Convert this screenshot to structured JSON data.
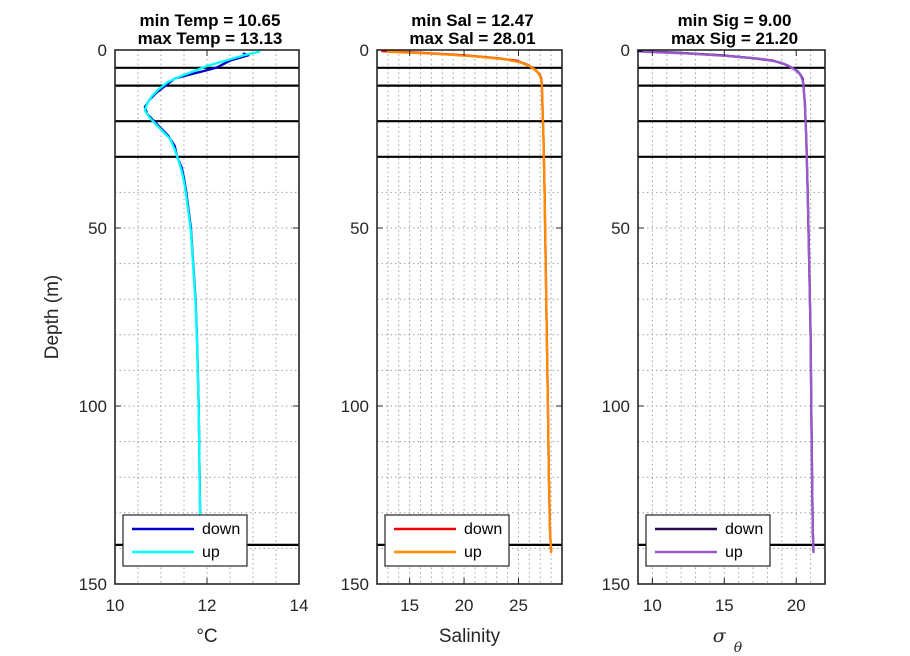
{
  "chart_data": [
    {
      "type": "line",
      "panel": "temperature",
      "title_lines": [
        "min Temp = 10.65",
        "max Temp = 13.13"
      ],
      "xlabel": "°C",
      "ylabel": "Depth (m)",
      "xlim": [
        10,
        14
      ],
      "ylim": [
        0,
        150
      ],
      "y_reversed": true,
      "xticks": [
        10,
        12,
        14
      ],
      "yticks": [
        0,
        50,
        100,
        150
      ],
      "minor_x_step": 0.5,
      "minor_y_step": 10,
      "grid": "dotted-minor",
      "reference_depths": [
        5,
        10,
        20,
        30,
        139
      ],
      "legend_position": "bottom",
      "series": [
        {
          "name": "down",
          "color": "#0000cd",
          "points": [
            [
              12.8,
              1
            ],
            [
              12.9,
              1.5
            ],
            [
              12.5,
              3
            ],
            [
              12.2,
              5
            ],
            [
              11.9,
              6
            ],
            [
              11.6,
              7
            ],
            [
              11.3,
              8
            ],
            [
              11.1,
              10
            ],
            [
              10.9,
              12
            ],
            [
              10.75,
              14
            ],
            [
              10.65,
              16
            ],
            [
              10.7,
              18
            ],
            [
              10.85,
              20
            ],
            [
              11.0,
              22
            ],
            [
              11.15,
              24
            ],
            [
              11.3,
              27
            ],
            [
              11.35,
              30
            ],
            [
              11.45,
              33
            ],
            [
              11.5,
              36
            ],
            [
              11.55,
              40
            ],
            [
              11.6,
              45
            ],
            [
              11.65,
              50
            ],
            [
              11.7,
              60
            ],
            [
              11.75,
              70
            ],
            [
              11.78,
              80
            ],
            [
              11.8,
              90
            ],
            [
              11.82,
              100
            ],
            [
              11.83,
              110
            ],
            [
              11.84,
              120
            ],
            [
              11.85,
              130
            ]
          ]
        },
        {
          "name": "up",
          "color": "#00ffff",
          "points": [
            [
              13.13,
              0.5
            ],
            [
              12.8,
              1.5
            ],
            [
              12.4,
              3
            ],
            [
              12.0,
              4.5
            ],
            [
              11.7,
              6
            ],
            [
              11.4,
              7.5
            ],
            [
              11.15,
              9
            ],
            [
              10.95,
              11
            ],
            [
              10.8,
              13
            ],
            [
              10.7,
              15
            ],
            [
              10.65,
              17
            ],
            [
              10.75,
              19
            ],
            [
              10.9,
              21
            ],
            [
              11.05,
              23
            ],
            [
              11.2,
              25
            ],
            [
              11.3,
              28
            ],
            [
              11.38,
              31
            ],
            [
              11.45,
              34
            ],
            [
              11.5,
              37
            ],
            [
              11.55,
              41
            ],
            [
              11.6,
              46
            ],
            [
              11.65,
              51
            ],
            [
              11.7,
              61
            ],
            [
              11.75,
              71
            ],
            [
              11.78,
              81
            ],
            [
              11.8,
              91
            ],
            [
              11.82,
              101
            ],
            [
              11.83,
              111
            ],
            [
              11.84,
              121
            ],
            [
              11.85,
              131
            ]
          ]
        }
      ]
    },
    {
      "type": "line",
      "panel": "salinity",
      "title_lines": [
        "min Sal = 12.47",
        "max Sal = 28.01"
      ],
      "xlabel": "Salinity",
      "ylabel": "",
      "xlim": [
        12,
        29
      ],
      "ylim": [
        0,
        150
      ],
      "y_reversed": true,
      "xticks": [
        15,
        20,
        25
      ],
      "yticks": [
        0,
        50,
        100,
        150
      ],
      "minor_x_step": 1,
      "minor_y_step": 10,
      "grid": "dotted-minor",
      "reference_depths": [
        5,
        10,
        20,
        30,
        139
      ],
      "legend_position": "bottom",
      "series": [
        {
          "name": "down",
          "color": "#ee0000",
          "points": [
            [
              12.47,
              0.3
            ],
            [
              16.0,
              0.8
            ],
            [
              20.0,
              1.5
            ],
            [
              23.0,
              2.3
            ],
            [
              24.8,
              3
            ],
            [
              25.7,
              4
            ],
            [
              26.3,
              5
            ],
            [
              26.7,
              6
            ],
            [
              26.95,
              7
            ],
            [
              27.1,
              8
            ],
            [
              27.15,
              10
            ],
            [
              27.2,
              15
            ],
            [
              27.3,
              25
            ],
            [
              27.4,
              40
            ],
            [
              27.5,
              60
            ],
            [
              27.6,
              80
            ],
            [
              27.7,
              100
            ],
            [
              27.8,
              120
            ],
            [
              27.9,
              135
            ],
            [
              28.0,
              141
            ]
          ]
        },
        {
          "name": "up",
          "color": "#ff8c00",
          "points": [
            [
              13.0,
              0.5
            ],
            [
              17.0,
              1.0
            ],
            [
              21.0,
              1.8
            ],
            [
              23.8,
              2.6
            ],
            [
              25.2,
              3.5
            ],
            [
              26.0,
              4.5
            ],
            [
              26.5,
              5.5
            ],
            [
              26.8,
              6.5
            ],
            [
              27.0,
              7.5
            ],
            [
              27.1,
              8.5
            ],
            [
              27.15,
              10
            ],
            [
              27.2,
              15
            ],
            [
              27.3,
              25
            ],
            [
              27.4,
              40
            ],
            [
              27.5,
              60
            ],
            [
              27.6,
              80
            ],
            [
              27.7,
              100
            ],
            [
              27.8,
              120
            ],
            [
              27.9,
              135
            ],
            [
              28.01,
              141
            ]
          ]
        }
      ]
    },
    {
      "type": "line",
      "panel": "sigma-theta",
      "title_lines": [
        "min Sig = 9.00",
        "max Sig = 21.20"
      ],
      "xlabel": "σ θ",
      "ylabel": "",
      "xlim": [
        9,
        22
      ],
      "ylim": [
        0,
        150
      ],
      "y_reversed": true,
      "xticks": [
        10,
        15,
        20
      ],
      "yticks": [
        0,
        50,
        100,
        150
      ],
      "minor_x_step": 1,
      "minor_y_step": 10,
      "grid": "dotted-minor",
      "reference_depths": [
        5,
        10,
        20,
        30,
        139
      ],
      "legend_position": "bottom",
      "series": [
        {
          "name": "down",
          "color": "#2a0a50",
          "points": [
            [
              9.0,
              0.3
            ],
            [
              11.8,
              0.8
            ],
            [
              14.8,
              1.5
            ],
            [
              17.0,
              2.3
            ],
            [
              18.4,
              3
            ],
            [
              19.2,
              4
            ],
            [
              19.7,
              5
            ],
            [
              20.1,
              6
            ],
            [
              20.3,
              7
            ],
            [
              20.45,
              8
            ],
            [
              20.5,
              10
            ],
            [
              20.6,
              15
            ],
            [
              20.7,
              25
            ],
            [
              20.8,
              40
            ],
            [
              20.9,
              60
            ],
            [
              21.0,
              80
            ],
            [
              21.05,
              100
            ],
            [
              21.1,
              120
            ],
            [
              21.15,
              135
            ],
            [
              21.2,
              141
            ]
          ]
        },
        {
          "name": "up",
          "color": "#9b59d0",
          "points": [
            [
              9.4,
              0.5
            ],
            [
              12.6,
              1.0
            ],
            [
              15.6,
              1.8
            ],
            [
              17.8,
              2.6
            ],
            [
              18.9,
              3.5
            ],
            [
              19.5,
              4.5
            ],
            [
              19.9,
              5.5
            ],
            [
              20.2,
              6.5
            ],
            [
              20.35,
              7.5
            ],
            [
              20.45,
              8.5
            ],
            [
              20.5,
              10
            ],
            [
              20.6,
              15
            ],
            [
              20.7,
              25
            ],
            [
              20.8,
              40
            ],
            [
              20.9,
              60
            ],
            [
              21.0,
              80
            ],
            [
              21.05,
              100
            ],
            [
              21.1,
              120
            ],
            [
              21.15,
              135
            ],
            [
              21.2,
              141
            ]
          ]
        }
      ]
    }
  ]
}
